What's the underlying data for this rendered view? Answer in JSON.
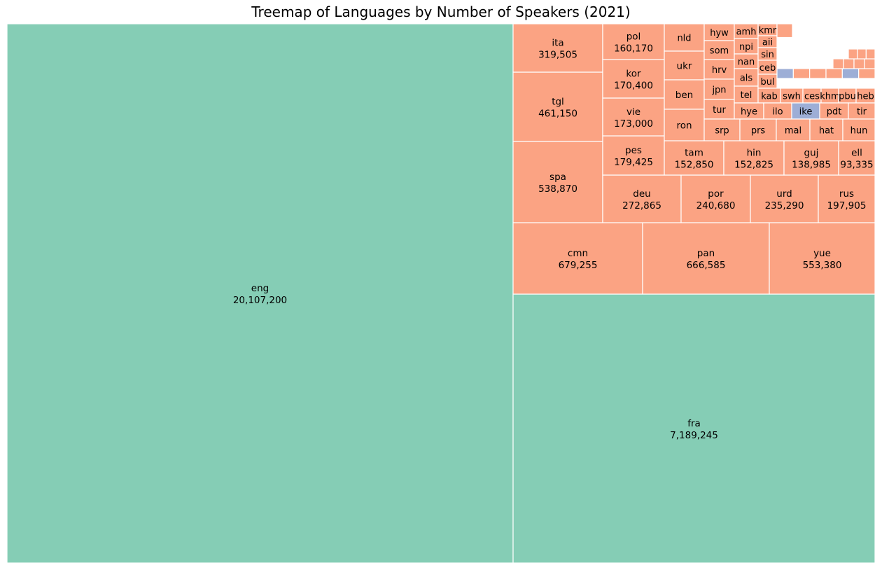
{
  "chart_data": {
    "type": "treemap",
    "title": "Treemap of Languages by Number of Speakers (2021)",
    "colors": {
      "official": "#85cdb5",
      "non_official": "#fba383",
      "indigenous": "#9daed6",
      "border": "#ffffff"
    },
    "items": [
      {
        "name": "eng",
        "value": 20107200,
        "group": "official",
        "value_label": "20,107,200"
      },
      {
        "name": "fra",
        "value": 7189245,
        "group": "official",
        "value_label": "7,189,245"
      },
      {
        "name": "cmn",
        "value": 679255,
        "group": "non_official",
        "value_label": "679,255"
      },
      {
        "name": "pan",
        "value": 666585,
        "group": "non_official",
        "value_label": "666,585"
      },
      {
        "name": "yue",
        "value": 553380,
        "group": "non_official",
        "value_label": "553,380"
      },
      {
        "name": "spa",
        "value": 538870,
        "group": "non_official",
        "value_label": "538,870"
      },
      {
        "name": "tgl",
        "value": 461150,
        "group": "non_official",
        "value_label": "461,150"
      },
      {
        "name": "ita",
        "value": 319505,
        "group": "non_official",
        "value_label": "319,505"
      },
      {
        "name": "deu",
        "value": 272865,
        "group": "non_official",
        "value_label": "272,865"
      },
      {
        "name": "por",
        "value": 240680,
        "group": "non_official",
        "value_label": "240,680"
      },
      {
        "name": "urd",
        "value": 235290,
        "group": "non_official",
        "value_label": "235,290"
      },
      {
        "name": "rus",
        "value": 197905,
        "group": "non_official",
        "value_label": "197,905"
      },
      {
        "name": "pes",
        "value": 179425,
        "group": "non_official",
        "value_label": "179,425"
      },
      {
        "name": "vie",
        "value": 173000,
        "group": "non_official",
        "value_label": "173,000"
      },
      {
        "name": "kor",
        "value": 170400,
        "group": "non_official",
        "value_label": "170,400"
      },
      {
        "name": "pol",
        "value": 160170,
        "group": "non_official",
        "value_label": "160,170"
      },
      {
        "name": "tam",
        "value": 152850,
        "group": "non_official",
        "value_label": "152,850"
      },
      {
        "name": "hin",
        "value": 152825,
        "group": "non_official",
        "value_label": "152,825"
      },
      {
        "name": "guj",
        "value": 138985,
        "group": "non_official",
        "value_label": "138,985"
      },
      {
        "name": "ell",
        "value": 93335,
        "group": "non_official",
        "value_label": "93,335"
      },
      {
        "name": "nld",
        "value": 98000,
        "group": "non_official"
      },
      {
        "name": "ukr",
        "value": 95000,
        "group": "non_official"
      },
      {
        "name": "ben",
        "value": 91000,
        "group": "non_official"
      },
      {
        "name": "ron",
        "value": 89000,
        "group": "non_official"
      },
      {
        "name": "hyw",
        "value": 30000,
        "group": "non_official"
      },
      {
        "name": "som",
        "value": 29000,
        "group": "non_official"
      },
      {
        "name": "hrv",
        "value": 44000,
        "group": "non_official"
      },
      {
        "name": "jpn",
        "value": 43000,
        "group": "non_official"
      },
      {
        "name": "tur",
        "value": 42000,
        "group": "non_official"
      },
      {
        "name": "amh",
        "value": 27000,
        "group": "non_official"
      },
      {
        "name": "npi",
        "value": 27000,
        "group": "non_official"
      },
      {
        "name": "nan",
        "value": 25000,
        "group": "non_official"
      },
      {
        "name": "als",
        "value": 25000,
        "group": "non_official"
      },
      {
        "name": "tel",
        "value": 24000,
        "group": "non_official"
      },
      {
        "name": "kmr",
        "value": 16000,
        "group": "non_official"
      },
      {
        "name": "aii",
        "value": 16000,
        "group": "non_official"
      },
      {
        "name": "sin",
        "value": 16000,
        "group": "non_official"
      },
      {
        "name": "ceb",
        "value": 16000,
        "group": "non_official"
      },
      {
        "name": "bul",
        "value": 16000,
        "group": "non_official"
      },
      {
        "name": "kab",
        "value": 25000,
        "group": "non_official"
      },
      {
        "name": "swh",
        "value": 25000,
        "group": "non_official"
      },
      {
        "name": "ces",
        "value": 20000,
        "group": "non_official"
      },
      {
        "name": "khm",
        "value": 20000,
        "group": "non_official"
      },
      {
        "name": "pbu",
        "value": 20000,
        "group": "non_official"
      },
      {
        "name": "heb",
        "value": 20000,
        "group": "non_official"
      },
      {
        "name": "hye",
        "value": 34000,
        "group": "non_official"
      },
      {
        "name": "ilo",
        "value": 33000,
        "group": "non_official"
      },
      {
        "name": "ike",
        "value": 33000,
        "group": "indigenous"
      },
      {
        "name": "pdt",
        "value": 33000,
        "group": "non_official"
      },
      {
        "name": "tir",
        "value": 32000,
        "group": "non_official"
      },
      {
        "name": "srp",
        "value": 41000,
        "group": "non_official"
      },
      {
        "name": "prs",
        "value": 41000,
        "group": "non_official"
      },
      {
        "name": "mal",
        "value": 40000,
        "group": "non_official"
      },
      {
        "name": "hat",
        "value": 38000,
        "group": "non_official"
      },
      {
        "name": "hun",
        "value": 37000,
        "group": "non_official"
      }
    ]
  }
}
